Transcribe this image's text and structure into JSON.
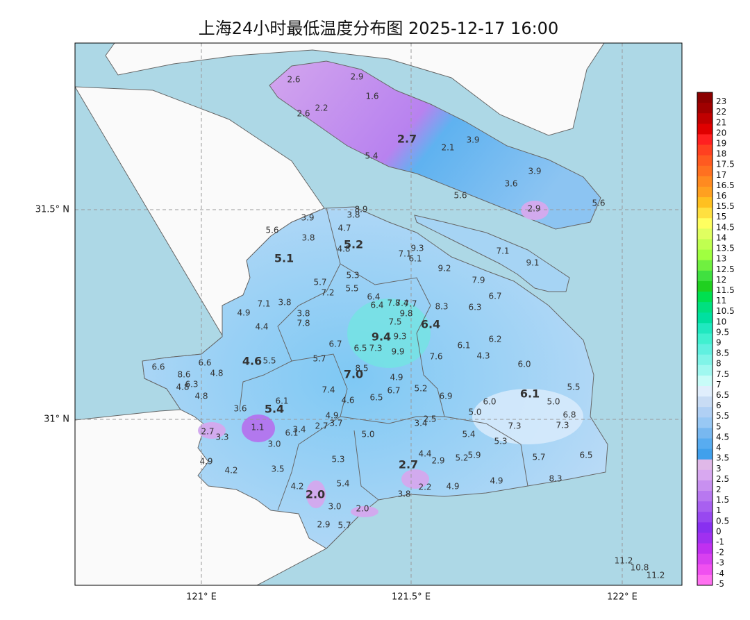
{
  "map": {
    "title": "上海24小时最低温度分布图 2025-12-17 16:00",
    "lat_labels": [
      "31.5° N",
      "31° N"
    ],
    "lon_labels": [
      "121° E",
      "121.5° E",
      "122° E"
    ],
    "colorbar": {
      "labels": [
        "23",
        "22",
        "21",
        "20",
        "19",
        "18",
        "17.5",
        "17",
        "16.5",
        "16",
        "15.5",
        "15",
        "14.5",
        "14",
        "13.5",
        "13",
        "12.5",
        "12",
        "11.5",
        "11",
        "10.5",
        "10",
        "9.5",
        "9",
        "8.5",
        "8",
        "7.5",
        "7",
        "6.5",
        "6",
        "5.5",
        "5",
        "4.5",
        "4",
        "3.5",
        "3",
        "2.5",
        "2",
        "1.5",
        "1",
        "0.5",
        "0",
        "-1",
        "-2",
        "-3",
        "-4",
        "-5"
      ],
      "colors": [
        "#8b0000",
        "#a00000",
        "#c00000",
        "#e00000",
        "#ff2020",
        "#ff4020",
        "#ff5a20",
        "#ff7020",
        "#ff8a20",
        "#ffa020",
        "#ffc020",
        "#ffe040",
        "#ffff60",
        "#e0ff60",
        "#c0ff50",
        "#a0ff40",
        "#70f040",
        "#40e040",
        "#20d020",
        "#00e050",
        "#00e080",
        "#00e0a0",
        "#20e8c0",
        "#40f0d0",
        "#60f0e0",
        "#80f4e8",
        "#a0f8f0",
        "#c8fcf8",
        "#e0eefc",
        "#c8dcf4",
        "#b0d0f4",
        "#98c8f4",
        "#78b8f0",
        "#58acf0",
        "#40a0ec",
        "#e0b8e8",
        "#d8a8f0",
        "#c890f0",
        "#b878f0",
        "#a860f0",
        "#9848f0",
        "#8830f0",
        "#a030f0",
        "#c030f0",
        "#d840f0",
        "#f050f0",
        "#ff70f0"
      ]
    },
    "region_values": [
      "2.7",
      "5.2",
      "5.1",
      "6.4",
      "9.4",
      "4.6",
      "7.0",
      "6.1",
      "5.4",
      "2.7",
      "2.0"
    ],
    "station_values": [
      "2.6",
      "2.9",
      "1.6",
      "2.2",
      "2.6",
      "2.1",
      "3.9",
      "5.4",
      "3.9",
      "3.6",
      "5.6",
      "2.9",
      "5.6",
      "8.9",
      "3.8",
      "3.9",
      "5.6",
      "4.7",
      "3.8",
      "4.8",
      "9.3",
      "7.1",
      "6.1",
      "7.1",
      "9.2",
      "9.1",
      "5.3",
      "5.7",
      "7.9",
      "7.2",
      "5.5",
      "6.7",
      "6.4",
      "7.1",
      "3.8",
      "6.4",
      "7.8",
      "7.4",
      "7.7",
      "8.3",
      "6.3",
      "4.9",
      "3.8",
      "9.8",
      "7.8",
      "7.5",
      "4.4",
      "9.3",
      "6.2",
      "6.7",
      "6.5",
      "7.3",
      "6.1",
      "9.9",
      "4.3",
      "7.6",
      "6.6",
      "6.6",
      "5.5",
      "5.7",
      "6.0",
      "8.6",
      "4.8",
      "8.5",
      "4.9",
      "4.8",
      "6.3",
      "5.5",
      "4.8",
      "7.4",
      "5.2",
      "6.7",
      "6.5",
      "6.9",
      "4.6",
      "6.0",
      "5.0",
      "6.1",
      "3.6",
      "5.0",
      "6.8",
      "4.9",
      "3.7",
      "2.7",
      "3.4",
      "2.5",
      "7.3",
      "7.3",
      "1.1",
      "3.4",
      "6.1",
      "2.7",
      "3.3",
      "5.0",
      "5.4",
      "5.3",
      "3.0",
      "4.4",
      "2.9",
      "5.2",
      "5.9",
      "4.9",
      "5.3",
      "5.7",
      "6.5",
      "4.2",
      "3.5",
      "8.3",
      "5.4",
      "4.2",
      "2.2",
      "4.9",
      "4.9",
      "3.8",
      "3.0",
      "2.0",
      "2.9",
      "5.7",
      "11.2",
      "10.8",
      "11.2"
    ]
  }
}
